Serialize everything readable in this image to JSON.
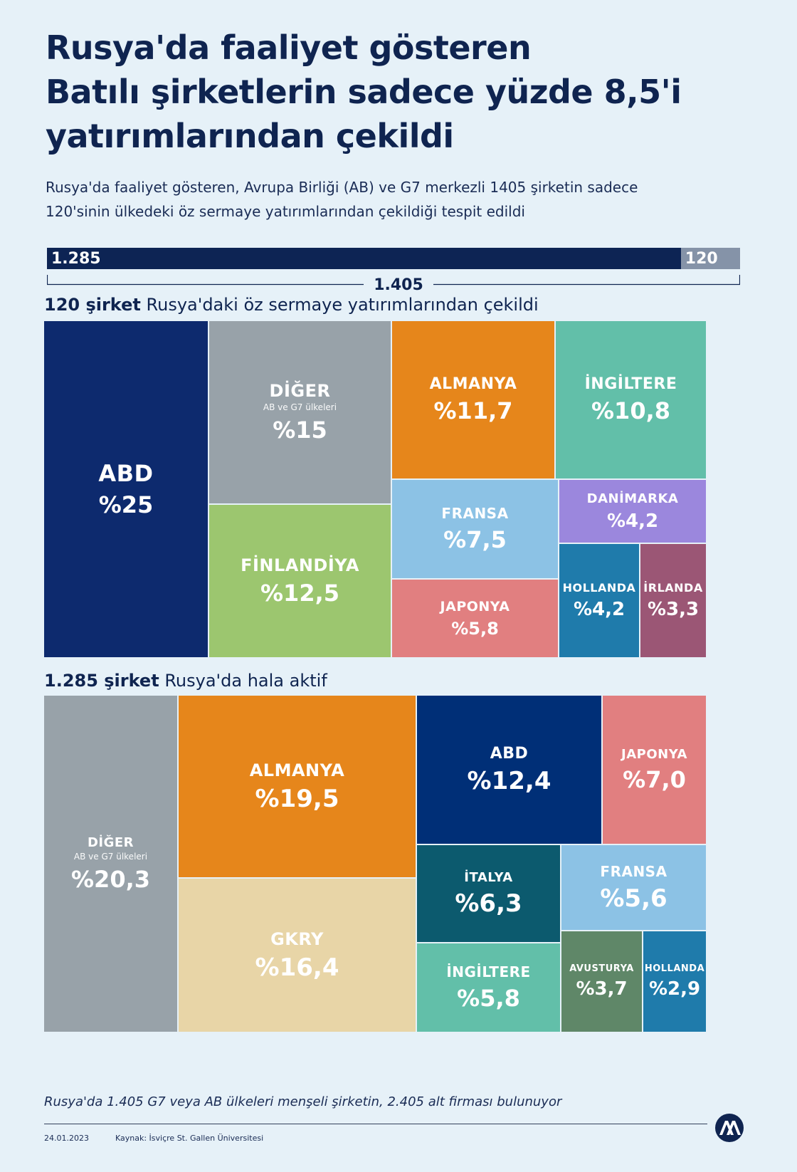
{
  "title_lines": [
    "Rusya'da faaliyet gösteren",
    "Batılı şirketlerin sadece yüzde 8,5'i",
    "yatırımlarından çekildi"
  ],
  "subtitle_lines": [
    "Rusya'da faaliyet gösteren, Avrupa Birliği (AB) ve G7 merkezli 1405 şirketin sadece",
    "120'sinin ülkedeki öz sermaye yatırımlarından çekildiği tespit edildi"
  ],
  "total_bar": {
    "active_label": "1.285",
    "active_value": 1285,
    "withdrawn_label": "120",
    "withdrawn_value": 120,
    "total_label": "1.405"
  },
  "withdrawn_section": {
    "label_bold": "120 şirket",
    "label_rest": " Rusya'daki öz sermaye yatırımlarından çekildi"
  },
  "active_section": {
    "label_bold": "1.285 şirket",
    "label_rest": " Rusya'da hala aktif"
  },
  "footnote": "Rusya'da 1.405 G7 veya AB ülkeleri menşeli şirketin, 2.405 alt firması bulunuyor",
  "date": "24.01.2023",
  "source": "Kaynak: İsviçre St. Gallen Üniversitesi",
  "colors": {
    "navy": "#0d2a6e",
    "grey": "#98a2a9",
    "orange": "#e6861b",
    "teal": "#62bfa9",
    "green": "#9cc66f",
    "lightblue": "#8cc2e5",
    "purple": "#9b87dd",
    "pink": "#e17f80",
    "blue": "#1f7bab",
    "plum": "#9b5675",
    "darkteal": "#0c5a6e",
    "beige": "#e8d5a7",
    "olive": "#5f8768",
    "deepblue": "#002f77"
  },
  "chart_data": [
    {
      "type": "treemap",
      "title": "120 şirket Rusya'daki öz sermaye yatırımlarından çekildi",
      "unit": "%",
      "items": [
        {
          "name": "ABD",
          "value": 25,
          "label": "%25",
          "color": "#0d2a6e"
        },
        {
          "name": "DİĞER",
          "note": "AB ve G7 ülkeleri",
          "value": 15,
          "label": "%15",
          "color": "#98a2a9"
        },
        {
          "name": "FİNLANDİYA",
          "value": 12.5,
          "label": "%12,5",
          "color": "#9cc66f"
        },
        {
          "name": "ALMANYA",
          "value": 11.7,
          "label": "%11,7",
          "color": "#e6861b"
        },
        {
          "name": "İNGİLTERE",
          "value": 10.8,
          "label": "%10,8",
          "color": "#62bfa9"
        },
        {
          "name": "FRANSA",
          "value": 7.5,
          "label": "%7,5",
          "color": "#8cc2e5"
        },
        {
          "name": "JAPONYA",
          "value": 5.8,
          "label": "%5,8",
          "color": "#e17f80"
        },
        {
          "name": "DANİMARKA",
          "value": 4.2,
          "label": "%4,2",
          "color": "#9b87dd"
        },
        {
          "name": "HOLLANDA",
          "value": 4.2,
          "label": "%4,2",
          "color": "#1f7bab"
        },
        {
          "name": "İRLANDA",
          "value": 3.3,
          "label": "%3,3",
          "color": "#9b5675"
        }
      ]
    },
    {
      "type": "treemap",
      "title": "1.285 şirket Rusya'da hala aktif",
      "unit": "%",
      "items": [
        {
          "name": "DİĞER",
          "note": "AB ve G7 ülkeleri",
          "value": 20.3,
          "label": "%20,3",
          "color": "#98a2a9"
        },
        {
          "name": "ALMANYA",
          "value": 19.5,
          "label": "%19,5",
          "color": "#e6861b"
        },
        {
          "name": "GKRY",
          "value": 16.4,
          "label": "%16,4",
          "color": "#e8d5a7"
        },
        {
          "name": "ABD",
          "value": 12.4,
          "label": "%12,4",
          "color": "#002f77"
        },
        {
          "name": "JAPONYA",
          "value": 7.0,
          "label": "%7,0",
          "color": "#e17f80"
        },
        {
          "name": "İTALYA",
          "value": 6.3,
          "label": "%6,3",
          "color": "#0c5a6e"
        },
        {
          "name": "FRANSA",
          "value": 5.6,
          "label": "%5,6",
          "color": "#8cc2e5"
        },
        {
          "name": "İNGİLTERE",
          "value": 5.8,
          "label": "%5,8",
          "color": "#62bfa9"
        },
        {
          "name": "AVUSTURYA",
          "value": 3.7,
          "label": "%3,7",
          "color": "#5f8768"
        },
        {
          "name": "HOLLANDA",
          "value": 2.9,
          "label": "%2,9",
          "color": "#1f7bab"
        }
      ]
    }
  ]
}
